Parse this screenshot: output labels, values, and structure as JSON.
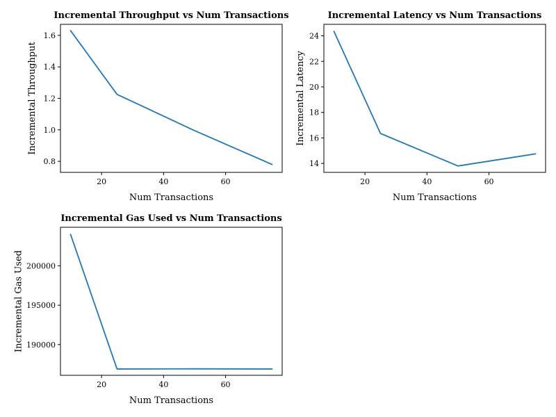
{
  "chart_data": [
    {
      "type": "line",
      "title": "Incremental Throughput vs Num Transactions",
      "xlabel": "Num Transactions",
      "ylabel": "Incremental Throughput",
      "x": [
        10,
        25,
        50,
        75
      ],
      "series": [
        {
          "values": [
            1.63,
            1.225,
            0.995,
            0.78
          ]
        }
      ],
      "xlim": [
        6.75,
        78.25
      ],
      "ylim": [
        0.73,
        1.67
      ],
      "xticks": [
        20,
        40,
        60
      ],
      "yticks": [
        0.8,
        1.0,
        1.2,
        1.4,
        1.6
      ],
      "ytick_labels": [
        "0.8",
        "1.0",
        "1.2",
        "1.4",
        "1.6"
      ],
      "grid": false,
      "color": "#1f77b4"
    },
    {
      "type": "line",
      "title": "Incremental Latency vs Num Transactions",
      "xlabel": "Num Transactions",
      "ylabel": "Incremental Latency",
      "x": [
        10,
        25,
        50,
        75
      ],
      "series": [
        {
          "values": [
            24.35,
            16.35,
            13.8,
            14.75
          ]
        }
      ],
      "xlim": [
        6.75,
        78.25
      ],
      "ylim": [
        13.3,
        24.9
      ],
      "xticks": [
        20,
        40,
        60
      ],
      "yticks": [
        14,
        16,
        18,
        20,
        22,
        24
      ],
      "ytick_labels": [
        "14",
        "16",
        "18",
        "20",
        "22",
        "24"
      ],
      "grid": false,
      "color": "#1f77b4"
    },
    {
      "type": "line",
      "title": "Incremental Gas Used vs Num Transactions",
      "xlabel": "Num Transactions",
      "ylabel": "Incremental Gas Used",
      "x": [
        10,
        25,
        50,
        75
      ],
      "series": [
        {
          "values": [
            204000,
            186900,
            186920,
            186900
          ]
        }
      ],
      "xlim": [
        6.75,
        78.25
      ],
      "ylim": [
        186100,
        204900
      ],
      "xticks": [
        20,
        40,
        60
      ],
      "yticks": [
        190000,
        195000,
        200000
      ],
      "ytick_labels": [
        "190000",
        "195000",
        "200000"
      ],
      "grid": false,
      "color": "#1f77b4"
    }
  ]
}
